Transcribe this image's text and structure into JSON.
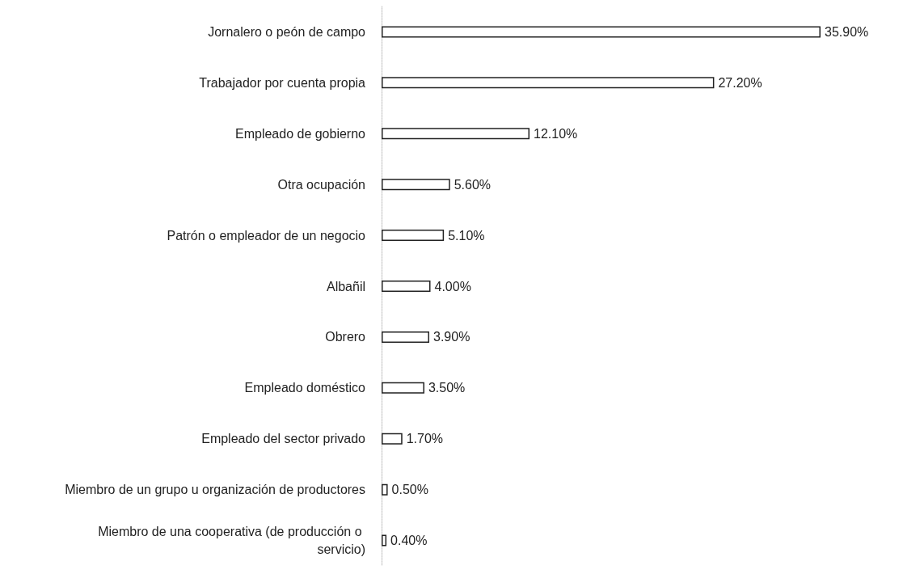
{
  "chart_data": {
    "type": "bar",
    "orientation": "horizontal",
    "categories": [
      "Jornalero o peón de campo",
      "Trabajador por cuenta propia",
      "Empleado de gobierno",
      "Otra ocupación",
      "Patrón o empleador de un negocio",
      "Albañil",
      "Obrero",
      "Empleado doméstico",
      "Empleado del sector privado",
      "Miembro de un grupo u organización de productores",
      "Miembro de una cooperativa (de producción o servicio)"
    ],
    "values": [
      35.9,
      27.2,
      12.1,
      5.6,
      5.1,
      4.0,
      3.9,
      3.5,
      1.7,
      0.5,
      0.4
    ],
    "value_labels": [
      "35.90%",
      "27.20%",
      "12.10%",
      "5.60%",
      "5.10%",
      "4.00%",
      "3.90%",
      "3.50%",
      "1.70%",
      "0.50%",
      "0.40%"
    ],
    "color": "#ffffff"
  }
}
